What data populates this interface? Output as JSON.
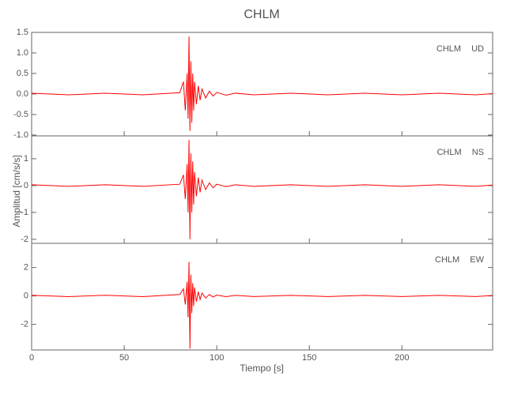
{
  "chart_data": {
    "type": "line",
    "title": "CHLM",
    "xlabel": "Tiempo [s]",
    "ylabel": "Amplitud [cm/s/s]",
    "x": [
      0,
      20,
      40,
      60,
      80,
      82,
      83,
      84,
      84.5,
      85,
      85.5,
      86,
      86.5,
      87,
      87.5,
      88,
      89,
      90,
      91,
      92,
      94,
      96,
      98,
      100,
      105,
      110,
      120,
      140,
      160,
      180,
      200,
      220,
      240,
      249
    ],
    "xlim": [
      0,
      249
    ],
    "xticks": [
      0,
      50,
      100,
      150,
      200
    ],
    "panels": [
      {
        "annotation": "CHLM UD",
        "color": "#ff0000",
        "ylim": [
          -1.02,
          1.5
        ],
        "yticks": [
          {
            "value": -1,
            "label": "-1.0"
          },
          -0.5,
          {
            "value": 0,
            "label": "0.0"
          },
          0.5,
          {
            "value": 1,
            "label": "1.0"
          },
          1.5
        ],
        "values": [
          0.02,
          -0.02,
          0.02,
          -0.02,
          0.03,
          0.3,
          -0.4,
          0.5,
          -0.6,
          1.4,
          -0.9,
          0.8,
          -0.7,
          0.5,
          -0.4,
          0.3,
          -0.25,
          0.2,
          -0.15,
          0.12,
          -0.1,
          0.07,
          -0.05,
          0.04,
          -0.03,
          0.02,
          -0.02,
          0.02,
          -0.02,
          0.02,
          -0.02,
          0.02,
          -0.02,
          0.01
        ]
      },
      {
        "annotation": "CHLM NS",
        "color": "#ff0000",
        "ylim": [
          -2.15,
          1.85
        ],
        "yticks": [
          -2,
          -1,
          0,
          1
        ],
        "values": [
          0.03,
          -0.03,
          0.03,
          -0.03,
          0.05,
          0.4,
          -0.5,
          0.8,
          -1.0,
          1.7,
          -2.0,
          1.2,
          -1.0,
          0.9,
          -0.7,
          0.5,
          -0.4,
          0.3,
          -0.25,
          0.2,
          -0.15,
          0.1,
          -0.08,
          0.05,
          -0.04,
          0.03,
          -0.03,
          0.03,
          -0.03,
          0.03,
          -0.03,
          0.03,
          -0.03,
          0.02
        ]
      },
      {
        "annotation": "CHLM EW",
        "color": "#ff0000",
        "ylim": [
          -3.8,
          3.7
        ],
        "yticks": [
          -2,
          0,
          2
        ],
        "values": [
          0.05,
          -0.05,
          0.05,
          -0.05,
          0.1,
          0.5,
          -0.6,
          1.0,
          -1.5,
          2.4,
          -3.7,
          1.5,
          -1.2,
          0.9,
          -0.7,
          0.6,
          -0.4,
          0.3,
          -0.25,
          0.2,
          -0.15,
          0.1,
          -0.08,
          0.06,
          -0.05,
          0.04,
          -0.04,
          0.04,
          -0.04,
          0.04,
          -0.04,
          0.04,
          -0.04,
          0.03
        ]
      }
    ]
  }
}
